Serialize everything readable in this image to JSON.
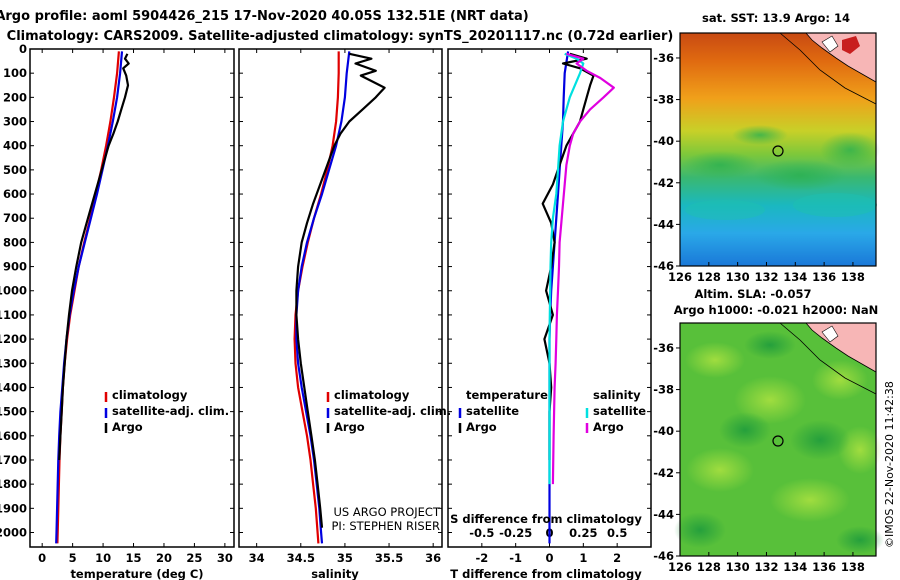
{
  "header": {
    "title_line1": "Argo profile: aoml 5904426_215 17-Nov-2020 40.05S 132.51E (NRT data)",
    "title_line2": "Climatology: CARS2009. Satellite-adjusted climatology: synTS_20201117.nc (0.72d earlier)"
  },
  "chart_data": [
    {
      "type": "line",
      "panel": "temperature",
      "xlabel": "temperature (deg C)",
      "ylabel": "",
      "xlim": [
        -2,
        31.5
      ],
      "ylim": [
        2060,
        0
      ],
      "x_ticks": [
        0,
        5,
        10,
        15,
        20,
        25,
        30
      ],
      "x_tick_labels": [
        "0",
        "5",
        "10",
        "15",
        "20",
        "25",
        "30"
      ],
      "y_ticks": [
        0,
        100,
        200,
        300,
        400,
        500,
        600,
        700,
        800,
        900,
        1000,
        1100,
        1200,
        1300,
        1400,
        1500,
        1600,
        1700,
        1800,
        1900,
        2000
      ],
      "y_tick_labels": [
        "0",
        "100",
        "200",
        "300",
        "400",
        "500",
        "600",
        "700",
        "800",
        "900",
        "1000",
        "1100",
        "1200",
        "1300",
        "1400",
        "1500",
        "1600",
        "1700",
        "1800",
        "1900",
        "2000"
      ],
      "legend": {
        "entries": [
          "climatology",
          "satellite-adj. clim.",
          "Argo"
        ],
        "position": "lower-right"
      },
      "series": [
        {
          "name": "climatology",
          "color": "#e00000",
          "x": [
            12.6,
            12.3,
            11.8,
            11.2,
            10.5,
            9.7,
            8.8,
            7.9,
            6.9,
            6.0,
            5.3,
            4.6,
            4.1,
            3.7,
            3.4,
            3.2,
            3.0,
            2.85,
            2.75,
            2.65,
            2.55,
            2.5
          ],
          "y": [
            10,
            100,
            200,
            300,
            400,
            500,
            600,
            700,
            800,
            900,
            1000,
            1100,
            1200,
            1300,
            1400,
            1500,
            1600,
            1700,
            1800,
            1900,
            2000,
            2045
          ]
        },
        {
          "name": "satellite-adj. clim.",
          "color": "#0000e0",
          "x": [
            13.1,
            12.8,
            12.3,
            11.6,
            10.8,
            9.9,
            9.0,
            8.0,
            7.0,
            6.0,
            5.2,
            4.5,
            4.0,
            3.6,
            3.3,
            3.0,
            2.8,
            2.65,
            2.55,
            2.45,
            2.35,
            2.3
          ],
          "y": [
            10,
            100,
            200,
            300,
            400,
            500,
            600,
            700,
            800,
            900,
            1000,
            1100,
            1200,
            1300,
            1400,
            1500,
            1600,
            1700,
            1800,
            1900,
            2000,
            2045
          ]
        },
        {
          "name": "Argo",
          "color": "#000000",
          "x": [
            14.0,
            13.6,
            14.2,
            13.3,
            13.8,
            14.1,
            13.6,
            13.0,
            12.4,
            11.7,
            10.9,
            10.0,
            9.1,
            8.2,
            7.3,
            6.4,
            5.6,
            4.9,
            4.4,
            4.0,
            3.7,
            3.4,
            3.2,
            3.0,
            2.8
          ],
          "y": [
            20,
            40,
            60,
            80,
            110,
            150,
            200,
            250,
            300,
            350,
            400,
            480,
            560,
            640,
            720,
            800,
            900,
            1000,
            1100,
            1200,
            1300,
            1400,
            1500,
            1600,
            1700
          ]
        }
      ]
    },
    {
      "type": "line",
      "panel": "salinity",
      "xlabel": "salinity",
      "ylabel": "",
      "xlim": [
        33.8,
        36.1
      ],
      "ylim": [
        2060,
        0
      ],
      "x_ticks": [
        34,
        34.5,
        35,
        35.5,
        36
      ],
      "x_tick_labels": [
        "34",
        "34.5",
        "35",
        "35.5",
        "36"
      ],
      "y_ticks": [
        0,
        100,
        200,
        300,
        400,
        500,
        600,
        700,
        800,
        900,
        1000,
        1100,
        1200,
        1300,
        1400,
        1500,
        1600,
        1700,
        1800,
        1900,
        2000
      ],
      "legend": {
        "entries": [
          "climatology",
          "satellite-adj. clim.",
          "Argo"
        ],
        "position": "lower-right"
      },
      "series": [
        {
          "name": "climatology",
          "color": "#e00000",
          "x": [
            34.93,
            34.93,
            34.92,
            34.9,
            34.86,
            34.8,
            34.73,
            34.65,
            34.58,
            34.52,
            34.47,
            34.44,
            34.43,
            34.44,
            34.47,
            34.52,
            34.57,
            34.61,
            34.64,
            34.67,
            34.69,
            34.7
          ],
          "y": [
            10,
            100,
            200,
            300,
            400,
            500,
            600,
            700,
            800,
            900,
            1000,
            1100,
            1200,
            1300,
            1400,
            1500,
            1600,
            1700,
            1800,
            1900,
            2000,
            2045
          ]
        },
        {
          "name": "satellite-adj. clim.",
          "color": "#0000e0",
          "x": [
            35.05,
            35.02,
            35.0,
            34.96,
            34.9,
            34.82,
            34.74,
            34.65,
            34.57,
            34.51,
            34.47,
            34.45,
            34.45,
            34.47,
            34.51,
            34.56,
            34.61,
            34.65,
            34.68,
            34.71,
            34.73,
            34.74
          ],
          "y": [
            10,
            100,
            200,
            300,
            400,
            500,
            600,
            700,
            800,
            900,
            1000,
            1100,
            1200,
            1300,
            1400,
            1500,
            1600,
            1700,
            1800,
            1900,
            2000,
            2045
          ]
        },
        {
          "name": "Argo",
          "color": "#000000",
          "x": [
            35.05,
            35.3,
            35.12,
            35.35,
            35.18,
            35.45,
            35.35,
            35.2,
            35.05,
            34.95,
            34.88,
            34.8,
            34.72,
            34.64,
            34.57,
            34.51,
            34.47,
            34.45,
            34.45,
            34.47,
            34.5,
            34.54,
            34.58,
            34.62,
            34.66,
            34.69,
            34.72,
            34.74
          ],
          "y": [
            20,
            40,
            60,
            90,
            110,
            160,
            200,
            250,
            300,
            350,
            400,
            480,
            560,
            640,
            720,
            800,
            900,
            1000,
            1100,
            1200,
            1300,
            1400,
            1500,
            1600,
            1700,
            1800,
            1900,
            1980
          ]
        }
      ],
      "annotations": [
        "US ARGO PROJECT",
        "PI: STEPHEN RISER"
      ]
    },
    {
      "type": "line",
      "panel": "difference",
      "xlabel": "T difference from climatology",
      "x2label": "S difference from climatology",
      "ylabel": "",
      "xlim": [
        -3,
        3
      ],
      "ylim": [
        2060,
        0
      ],
      "x_ticks": [
        -2,
        -1,
        0,
        1,
        2
      ],
      "x_tick_labels": [
        "-2",
        "-1",
        "0",
        "1",
        "2"
      ],
      "x2_tick_labels": [
        "-0.5",
        "-0.25",
        "0",
        "0.25",
        "0.5"
      ],
      "y_ticks": [
        0,
        100,
        200,
        300,
        400,
        500,
        600,
        700,
        800,
        900,
        1000,
        1100,
        1200,
        1300,
        1400,
        1500,
        1600,
        1700,
        1800,
        1900,
        2000
      ],
      "legend": {
        "temperature_heading": "temperature",
        "salinity_heading": "salinity",
        "temperature_entries": [
          "satellite",
          "Argo"
        ],
        "salinity_entries": [
          "satellite",
          "Argo"
        ],
        "position": "lower"
      },
      "series": [
        {
          "name": "temperature satellite",
          "color": "#0000e0",
          "x": [
            0.55,
            0.45,
            0.42,
            0.4,
            0.35,
            0.3,
            0.25,
            0.2,
            0.15,
            0.1,
            0.05,
            0.02,
            0.0,
            0.0,
            0.0,
            0.0,
            0.0,
            0.0,
            0.0,
            0.0,
            0.0,
            0.0
          ],
          "y": [
            10,
            100,
            200,
            300,
            400,
            500,
            600,
            700,
            800,
            900,
            1000,
            1100,
            1200,
            1300,
            1400,
            1500,
            1600,
            1700,
            1800,
            1900,
            2000,
            2045
          ]
        },
        {
          "name": "temperature Argo",
          "color": "#000000",
          "x": [
            0.6,
            1.1,
            0.4,
            0.9,
            1.3,
            1.2,
            1.1,
            1.0,
            0.9,
            0.7,
            0.5,
            0.3,
            0.1,
            -0.2,
            0.05,
            0.15,
            0.05,
            -0.1,
            0.1,
            -0.15,
            0.0,
            0.05,
            0.0,
            0.0,
            0.0
          ],
          "y": [
            20,
            40,
            60,
            80,
            110,
            150,
            200,
            250,
            300,
            350,
            400,
            480,
            560,
            640,
            720,
            800,
            900,
            1000,
            1100,
            1200,
            1300,
            1400,
            1500,
            1600,
            1700
          ]
        },
        {
          "name": "salinity satellite",
          "color": "#00e0e0",
          "x": [
            0.45,
            0.8,
            1.0,
            0.9,
            0.6,
            0.4,
            0.3,
            0.25,
            0.2,
            0.1,
            0.05,
            0.03,
            0.02,
            0.01,
            0.0,
            0.0,
            0.0,
            0.0,
            0.0,
            0.0,
            0.0
          ],
          "y": [
            20,
            40,
            60,
            100,
            200,
            300,
            400,
            500,
            600,
            700,
            800,
            900,
            1000,
            1100,
            1200,
            1300,
            1400,
            1500,
            1600,
            1700,
            1800
          ]
        },
        {
          "name": "salinity Argo",
          "color": "#e000e0",
          "x": [
            0.5,
            1.0,
            0.8,
            1.1,
            1.5,
            1.9,
            1.6,
            1.2,
            0.9,
            0.7,
            0.6,
            0.5,
            0.45,
            0.4,
            0.35,
            0.3,
            0.28,
            0.25,
            0.22,
            0.2,
            0.18,
            0.15,
            0.12,
            0.1
          ],
          "y": [
            20,
            40,
            60,
            90,
            120,
            160,
            200,
            250,
            300,
            350,
            400,
            480,
            560,
            640,
            720,
            800,
            900,
            1000,
            1100,
            1200,
            1300,
            1400,
            1600,
            1800
          ]
        }
      ]
    }
  ],
  "maps": [
    {
      "title": "sat. SST: 13.9 Argo: 14",
      "lon_ticks": [
        "126",
        "128",
        "130",
        "132",
        "134",
        "136",
        "138"
      ],
      "lat_ticks": [
        "-36",
        "-38",
        "-40",
        "-42",
        "-44",
        "-46"
      ],
      "marker": {
        "lon": 132.51,
        "lat": -40.05
      }
    },
    {
      "title_line1": "Altim. SLA: -0.057",
      "title_line2": "Argo h1000: -0.021 h2000: NaN",
      "lon_ticks": [
        "126",
        "128",
        "130",
        "132",
        "134",
        "136",
        "138"
      ],
      "lat_ticks": [
        "-36",
        "-38",
        "-40",
        "-42",
        "-44",
        "-46"
      ],
      "marker": {
        "lon": 132.51,
        "lat": -40.05
      }
    }
  ],
  "watermark": "©IMOS 22-Nov-2020 11:42:38"
}
